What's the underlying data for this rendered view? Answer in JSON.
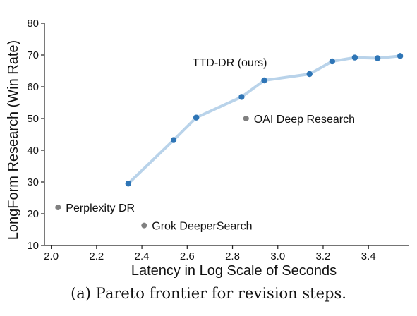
{
  "chart_data": {
    "type": "line",
    "xlabel": "Latency in Log Scale of Seconds",
    "ylabel": "LongForm Research (Win Rate)",
    "xlim": [
      1.97,
      3.58
    ],
    "ylim": [
      10,
      80
    ],
    "xticks": [
      2.0,
      2.2,
      2.4,
      2.6,
      2.8,
      3.0,
      3.2,
      3.4
    ],
    "xtick_labels": [
      "2.0",
      "2.2",
      "2.4",
      "2.6",
      "2.8",
      "3.0",
      "3.2",
      "3.4"
    ],
    "yticks": [
      10,
      20,
      30,
      40,
      50,
      60,
      70,
      80
    ],
    "ytick_labels": [
      "10",
      "20",
      "30",
      "40",
      "50",
      "60",
      "70",
      "80"
    ],
    "grid": false,
    "series": [
      {
        "name": "TTD-DR (ours)",
        "color": "#2e75b6",
        "line_color": "#b9d3ea",
        "x": [
          2.34,
          2.54,
          2.64,
          2.84,
          2.94,
          3.14,
          3.24,
          3.34,
          3.44,
          3.54
        ],
        "y": [
          29.5,
          43.2,
          50.3,
          56.8,
          62.0,
          64.0,
          68.0,
          69.2,
          69.0,
          69.7
        ]
      }
    ],
    "baselines": [
      {
        "label": "OAI Deep Research",
        "x": 2.86,
        "y": 50.0,
        "color": "#808080"
      },
      {
        "label": "Perplexity DR",
        "x": 2.03,
        "y": 22.0,
        "color": "#808080"
      },
      {
        "label": "Grok DeeperSearch",
        "x": 2.41,
        "y": 16.3,
        "color": "#808080"
      }
    ]
  },
  "caption": "(a) Pareto frontier for revision steps."
}
